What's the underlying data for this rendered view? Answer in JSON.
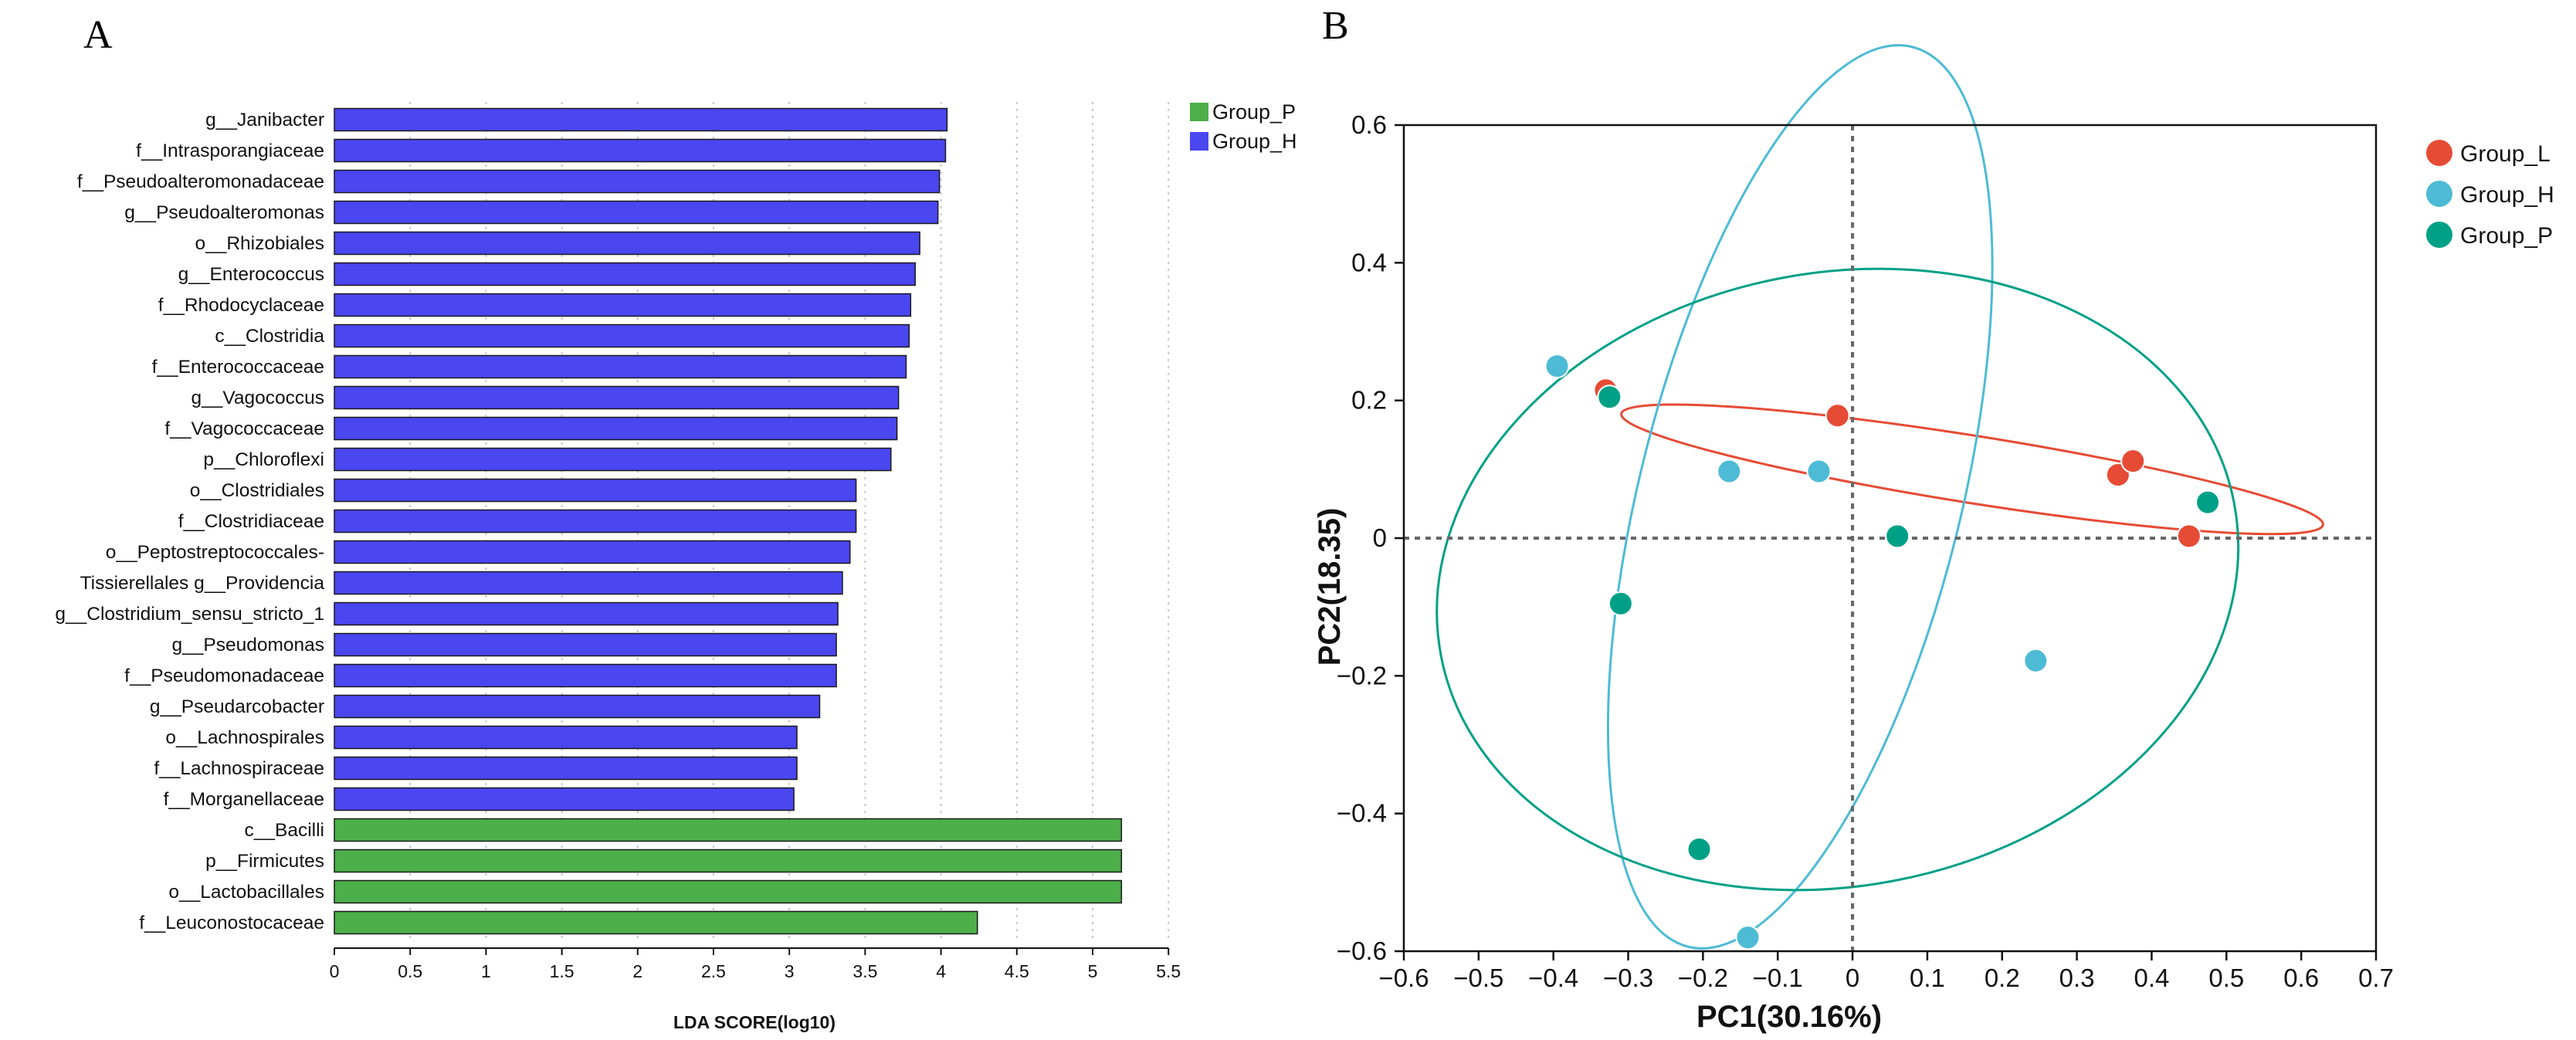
{
  "chart_data": [
    {
      "panel": "A",
      "type": "bar",
      "orientation": "horizontal",
      "categories": [
        "g__Janibacter",
        "f__Intrasporangiaceae",
        "f__Pseudoalteromonadaceae",
        "g__Pseudoalteromonas",
        "o__Rhizobiales",
        "g__Enterococcus",
        "f__Rhodocyclaceae",
        "c__Clostridia",
        "f__Enterococcaceae",
        "g__Vagococcus",
        "f__Vagococcaceae",
        "p__Chloroflexi",
        "o__Clostridiales",
        "f__Clostridiaceae",
        "o__Peptostreptococcales-",
        "Tissierellales g__Providencia",
        "g__Clostridium_sensu_stricto_1",
        "g__Pseudomonas",
        "f__Pseudomonadaceae",
        "g__Pseudarcobacter",
        "o__Lachnospirales",
        "f__Lachnospiraceae",
        "f__Morganellaceae",
        "c__Bacilli",
        "p__Firmicutes",
        "o__Lactobacillales",
        "f__Leuconostocaceae"
      ],
      "values": [
        4.04,
        4.03,
        3.99,
        3.98,
        3.86,
        3.83,
        3.8,
        3.79,
        3.77,
        3.72,
        3.71,
        3.67,
        3.44,
        3.44,
        3.4,
        3.35,
        3.32,
        3.31,
        3.31,
        3.2,
        3.05,
        3.05,
        3.03,
        5.19,
        5.19,
        5.19,
        4.24
      ],
      "groups": [
        "Group_H",
        "Group_H",
        "Group_H",
        "Group_H",
        "Group_H",
        "Group_H",
        "Group_H",
        "Group_H",
        "Group_H",
        "Group_H",
        "Group_H",
        "Group_H",
        "Group_H",
        "Group_H",
        "Group_H",
        "Group_H",
        "Group_H",
        "Group_H",
        "Group_H",
        "Group_H",
        "Group_H",
        "Group_H",
        "Group_H",
        "Group_P",
        "Group_P",
        "Group_P",
        "Group_P"
      ],
      "xlabel": "LDA SCORE(log10)",
      "xlim": [
        0,
        5.5
      ],
      "xticks": [
        "0",
        "0.5",
        "1",
        "1.5",
        "2",
        "2.5",
        "3",
        "3.5",
        "4",
        "4.5",
        "5",
        "5.5"
      ],
      "grid": "vertical dotted",
      "legend": [
        {
          "name": "Group_P",
          "color": "#4caf4a"
        },
        {
          "name": "Group_H",
          "color": "#4a46f0"
        }
      ],
      "legend_position": "top-right"
    },
    {
      "panel": "B",
      "type": "scatter",
      "xlabel": "PC1(30.16%)",
      "ylabel": "PC2(18.35)",
      "xlim": [
        -0.6,
        0.7
      ],
      "ylim": [
        -0.6,
        0.6
      ],
      "xticks": [
        "−0.6",
        "−0.5",
        "−0.4",
        "−0.3",
        "−0.2",
        "−0.1",
        "0",
        "0.1",
        "0.2",
        "0.3",
        "0.4",
        "0.5",
        "0.6",
        "0.7"
      ],
      "yticks": [
        "0.6",
        "0.4",
        "0.2",
        "0",
        "−0.2",
        "−0.4",
        "−0.6"
      ],
      "series": [
        {
          "name": "Group_L",
          "color": "#e64b35",
          "points": [
            [
              -0.33,
              0.215
            ],
            [
              -0.02,
              0.178
            ],
            [
              0.355,
              0.092
            ],
            [
              0.375,
              0.112
            ],
            [
              0.45,
              0.003
            ]
          ],
          "ellipse": {
            "cx": 0.16,
            "cy": 0.1,
            "rx": 0.475,
            "ry": 0.045,
            "angle_deg": 9
          }
        },
        {
          "name": "Group_H",
          "color": "#4dbbd5",
          "points": [
            [
              -0.395,
              0.25
            ],
            [
              -0.165,
              0.097
            ],
            [
              -0.045,
              0.097
            ],
            [
              0.245,
              -0.178
            ],
            [
              -0.14,
              -0.58
            ]
          ],
          "ellipse": {
            "cx": -0.07,
            "cy": 0.06,
            "rx": 0.62,
            "ry": 0.215,
            "angle_deg": -76
          }
        },
        {
          "name": "Group_P",
          "color": "#00a087",
          "points": [
            [
              -0.325,
              0.205
            ],
            [
              0.06,
              0.003
            ],
            [
              -0.31,
              -0.095
            ],
            [
              -0.205,
              -0.452
            ],
            [
              0.475,
              0.052
            ]
          ],
          "ellipse": {
            "cx": -0.02,
            "cy": -0.06,
            "rx": 0.54,
            "ry": 0.41,
            "angle_deg": -11
          }
        }
      ],
      "reference_lines": [
        "x = 0",
        "y = 0"
      ],
      "legend_position": "top-right"
    }
  ],
  "panels": {
    "a_letter": "A",
    "b_letter": "B"
  }
}
